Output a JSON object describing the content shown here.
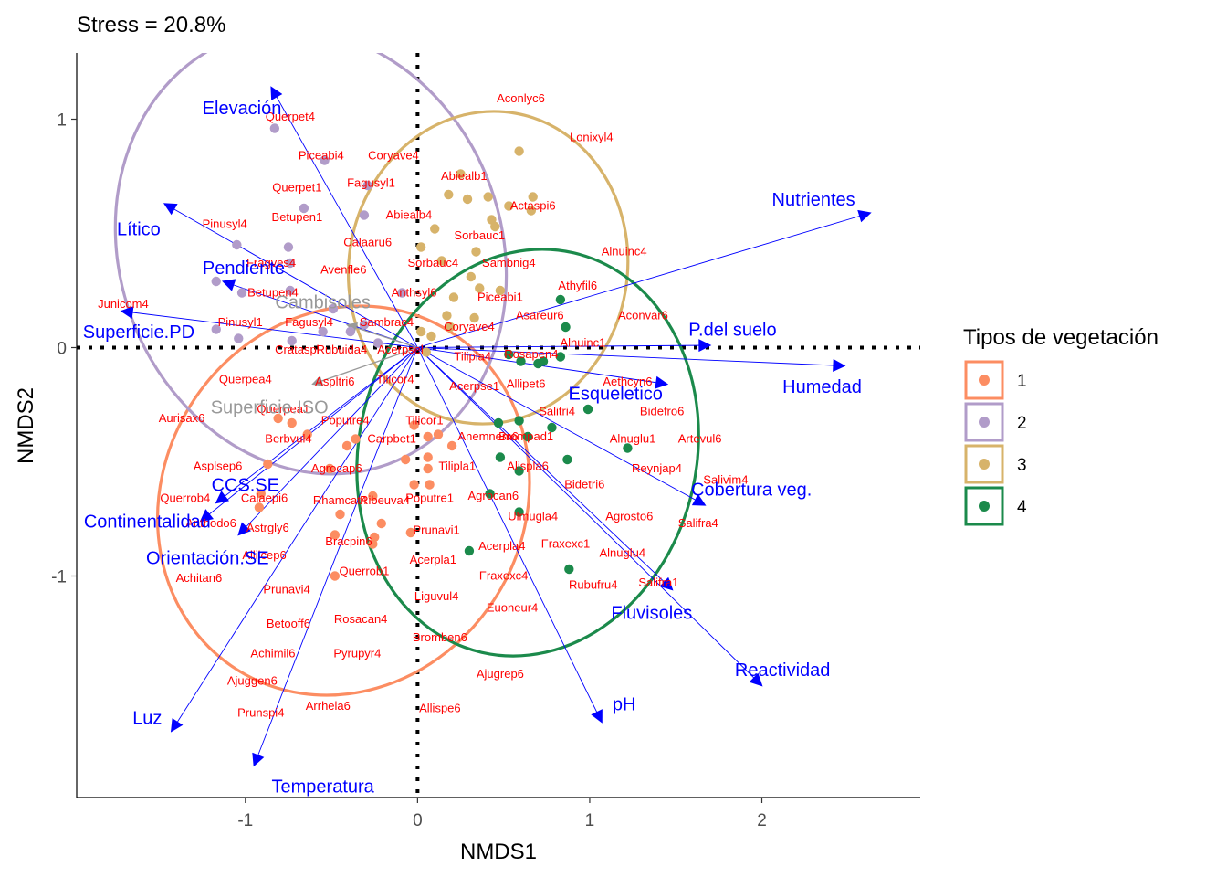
{
  "chart_data": {
    "type": "scatter",
    "title": "Stress = 20.8%",
    "xlabel": "NMDS1",
    "ylabel": "NMDS2",
    "xlim": [
      -1.98,
      2.92
    ],
    "ylim": [
      -1.97,
      1.29
    ],
    "xticks": [
      -1,
      0,
      1,
      2
    ],
    "yticks": [
      -1,
      0,
      1
    ],
    "xtick_labels": [
      "-1",
      "0",
      "1",
      "2"
    ],
    "ytick_labels": [
      "-1",
      "0",
      "1"
    ],
    "grid": false,
    "reference_lines": {
      "x": 0,
      "y": 0,
      "style": "dotted"
    },
    "legend": {
      "title": "Tipos de vegetación",
      "position": "right",
      "items": [
        {
          "label": "1",
          "color": "#fc8d62"
        },
        {
          "label": "2",
          "color": "#b19cc9"
        },
        {
          "label": "3",
          "color": "#d7b36a"
        },
        {
          "label": "4",
          "color": "#1b8a4b"
        }
      ]
    },
    "ellipses": [
      {
        "group": "1",
        "color": "#fc8d62",
        "cx": -0.43,
        "cy": -0.67,
        "rx": 1.16,
        "ry": 0.79,
        "angle": -58
      },
      {
        "group": "2",
        "color": "#b19cc9",
        "cx": -0.62,
        "cy": 0.42,
        "rx": 1.11,
        "ry": 0.99,
        "angle": -20
      },
      {
        "group": "3",
        "color": "#d7b36a",
        "cx": 0.41,
        "cy": 0.35,
        "rx": 0.91,
        "ry": 0.61,
        "angle": -80
      },
      {
        "group": "4",
        "color": "#1b8a4b",
        "cx": 0.64,
        "cy": -0.46,
        "rx": 1.19,
        "ry": 0.74,
        "angle": -77
      }
    ],
    "series": [
      {
        "name": "1",
        "color": "#fc8d62",
        "points": [
          [
            -0.81,
            -0.31
          ],
          [
            -0.73,
            -0.33
          ],
          [
            -0.87,
            -0.51
          ],
          [
            -0.91,
            -0.64
          ],
          [
            -0.92,
            -0.7
          ],
          [
            -0.64,
            -0.38
          ],
          [
            -0.41,
            -0.43
          ],
          [
            -0.45,
            -0.73
          ],
          [
            -0.26,
            -0.86
          ],
          [
            -0.25,
            -0.83
          ],
          [
            -0.48,
            -0.82
          ],
          [
            -0.48,
            -1.0
          ],
          [
            -0.21,
            -0.77
          ],
          [
            -0.26,
            -0.65
          ],
          [
            -0.07,
            -0.49
          ],
          [
            -0.02,
            -0.34
          ],
          [
            0.06,
            -0.39
          ],
          [
            0.12,
            -0.38
          ],
          [
            0.06,
            -0.48
          ],
          [
            0.2,
            -0.43
          ],
          [
            0.06,
            -0.53
          ],
          [
            -0.02,
            -0.6
          ],
          [
            0.07,
            -0.6
          ],
          [
            -0.04,
            -0.81
          ],
          [
            -0.36,
            -0.4
          ],
          [
            -0.51,
            -0.53
          ]
        ]
      },
      {
        "name": "2",
        "color": "#b19cc9",
        "points": [
          [
            -0.83,
            0.96
          ],
          [
            -0.66,
            0.61
          ],
          [
            -0.54,
            0.82
          ],
          [
            -0.29,
            0.71
          ],
          [
            -0.31,
            0.58
          ],
          [
            -0.75,
            0.44
          ],
          [
            -1.05,
            0.45
          ],
          [
            -0.74,
            0.37
          ],
          [
            -1.17,
            0.29
          ],
          [
            -1.02,
            0.24
          ],
          [
            -0.74,
            0.25
          ],
          [
            -1.17,
            0.08
          ],
          [
            -1.04,
            0.04
          ],
          [
            -0.73,
            0.03
          ],
          [
            -0.49,
            0.17
          ],
          [
            -0.39,
            0.07
          ],
          [
            -0.31,
            0.1
          ],
          [
            -0.23,
            0.02
          ],
          [
            -0.55,
            0.07
          ],
          [
            -0.09,
            0.24
          ]
        ]
      },
      {
        "name": "3",
        "color": "#d7b36a",
        "points": [
          [
            0.59,
            0.86
          ],
          [
            0.25,
            0.76
          ],
          [
            0.18,
            0.67
          ],
          [
            0.29,
            0.65
          ],
          [
            0.41,
            0.66
          ],
          [
            0.53,
            0.62
          ],
          [
            0.67,
            0.66
          ],
          [
            0.66,
            0.6
          ],
          [
            0.43,
            0.56
          ],
          [
            0.45,
            0.53
          ],
          [
            0.1,
            0.52
          ],
          [
            0.02,
            0.44
          ],
          [
            0.34,
            0.42
          ],
          [
            0.14,
            0.38
          ],
          [
            0.31,
            0.31
          ],
          [
            0.36,
            0.26
          ],
          [
            0.48,
            0.25
          ],
          [
            0.21,
            0.22
          ],
          [
            0.17,
            0.14
          ],
          [
            0.33,
            0.13
          ],
          [
            0.19,
            0.09
          ],
          [
            0.08,
            0.05
          ],
          [
            0.02,
            0.07
          ],
          [
            0.05,
            -0.02
          ]
        ]
      },
      {
        "name": "4",
        "color": "#1b8a4b",
        "points": [
          [
            0.83,
            0.21
          ],
          [
            0.86,
            0.09
          ],
          [
            0.6,
            -0.06
          ],
          [
            0.7,
            -0.07
          ],
          [
            0.83,
            -0.04
          ],
          [
            0.99,
            -0.27
          ],
          [
            0.78,
            -0.35
          ],
          [
            0.59,
            -0.32
          ],
          [
            0.47,
            -0.33
          ],
          [
            0.64,
            -0.39
          ],
          [
            1.22,
            -0.44
          ],
          [
            0.48,
            -0.48
          ],
          [
            0.59,
            -0.54
          ],
          [
            0.87,
            -0.49
          ],
          [
            0.42,
            -0.64
          ],
          [
            0.59,
            -0.72
          ],
          [
            0.3,
            -0.89
          ],
          [
            0.88,
            -0.97
          ],
          [
            0.73,
            -0.06
          ],
          [
            0.53,
            -0.03
          ]
        ]
      }
    ],
    "species_labels": [
      {
        "text": "Aconlyc6",
        "x": 0.6,
        "y": 1.09
      },
      {
        "text": "Querpet4",
        "x": -0.74,
        "y": 1.01
      },
      {
        "text": "Lonixyl4",
        "x": 1.01,
        "y": 0.92
      },
      {
        "text": "Piceabi4",
        "x": -0.56,
        "y": 0.84
      },
      {
        "text": "Coryave4",
        "x": -0.14,
        "y": 0.84
      },
      {
        "text": "Abiealb1",
        "x": 0.27,
        "y": 0.75
      },
      {
        "text": "Fagusyl1",
        "x": -0.27,
        "y": 0.72
      },
      {
        "text": "Querpet1",
        "x": -0.7,
        "y": 0.7
      },
      {
        "text": "Actaspi6",
        "x": 0.67,
        "y": 0.62
      },
      {
        "text": "Abiealb4",
        "x": -0.05,
        "y": 0.58
      },
      {
        "text": "Betupen1",
        "x": -0.7,
        "y": 0.57
      },
      {
        "text": "Pinusyl4",
        "x": -1.12,
        "y": 0.54
      },
      {
        "text": "Sorbauc1",
        "x": 0.36,
        "y": 0.49
      },
      {
        "text": "Calaaru6",
        "x": -0.29,
        "y": 0.46
      },
      {
        "text": "Alnuinc4",
        "x": 1.2,
        "y": 0.42
      },
      {
        "text": "Sorbauc4",
        "x": 0.09,
        "y": 0.37
      },
      {
        "text": "Sambnig4",
        "x": 0.53,
        "y": 0.37
      },
      {
        "text": "Avenfle6",
        "x": -0.43,
        "y": 0.34
      },
      {
        "text": "Fragves4",
        "x": -0.85,
        "y": 0.37
      },
      {
        "text": "Betupen4",
        "x": -0.84,
        "y": 0.24
      },
      {
        "text": "Athyfil6",
        "x": 0.93,
        "y": 0.27
      },
      {
        "text": "Anthsyl6",
        "x": -0.02,
        "y": 0.24
      },
      {
        "text": "Piceabi1",
        "x": 0.48,
        "y": 0.22
      },
      {
        "text": "Junicom4",
        "x": -1.71,
        "y": 0.19
      },
      {
        "text": "Asareur6",
        "x": 0.71,
        "y": 0.14
      },
      {
        "text": "Aconvar6",
        "x": 1.31,
        "y": 0.14
      },
      {
        "text": "Sambrac4",
        "x": -0.18,
        "y": 0.11
      },
      {
        "text": "Pinusyl1",
        "x": -1.03,
        "y": 0.11
      },
      {
        "text": "Fagusyl4",
        "x": -0.63,
        "y": 0.11
      },
      {
        "text": "Coryave4",
        "x": 0.3,
        "y": 0.09
      },
      {
        "text": "Alnuinc1",
        "x": 0.96,
        "y": 0.02
      },
      {
        "text": "Rubuida4",
        "x": -0.44,
        "y": -0.01
      },
      {
        "text": "Crataspl",
        "x": -0.7,
        "y": -0.01
      },
      {
        "text": "Acerpsel",
        "x": -0.1,
        "y": -0.01
      },
      {
        "text": "Tilipla4",
        "x": 0.32,
        "y": -0.04
      },
      {
        "text": "Rosapen4",
        "x": 0.66,
        "y": -0.03
      },
      {
        "text": "Querpea4",
        "x": -1.0,
        "y": -0.14
      },
      {
        "text": "Aspltri6",
        "x": -0.48,
        "y": -0.15
      },
      {
        "text": "Tilicor4",
        "x": -0.13,
        "y": -0.14
      },
      {
        "text": "Acerpse1",
        "x": 0.33,
        "y": -0.17
      },
      {
        "text": "Allipet6",
        "x": 0.63,
        "y": -0.16
      },
      {
        "text": "Aethcyn6",
        "x": 1.22,
        "y": -0.15
      },
      {
        "text": "Querpea1",
        "x": -0.78,
        "y": -0.27
      },
      {
        "text": "Aurisax6",
        "x": -1.37,
        "y": -0.31
      },
      {
        "text": "Poputre4",
        "x": -0.42,
        "y": -0.32
      },
      {
        "text": "Tilicor1",
        "x": 0.04,
        "y": -0.32
      },
      {
        "text": "Salitri4",
        "x": 0.81,
        "y": -0.28
      },
      {
        "text": "Bidefro6",
        "x": 1.42,
        "y": -0.28
      },
      {
        "text": "Berbvul4",
        "x": -0.75,
        "y": -0.4
      },
      {
        "text": "Carpbet1",
        "x": -0.15,
        "y": -0.4
      },
      {
        "text": "Anemnem6",
        "x": 0.41,
        "y": -0.39
      },
      {
        "text": "Brompad1",
        "x": 0.63,
        "y": -0.39
      },
      {
        "text": "Alnuglu1",
        "x": 1.25,
        "y": -0.4
      },
      {
        "text": "Artevul6",
        "x": 1.64,
        "y": -0.4
      },
      {
        "text": "Asplsep6",
        "x": -1.16,
        "y": -0.52
      },
      {
        "text": "Agrocap6",
        "x": -0.47,
        "y": -0.53
      },
      {
        "text": "Tilipla1",
        "x": 0.23,
        "y": -0.52
      },
      {
        "text": "Alispla6",
        "x": 0.64,
        "y": -0.52
      },
      {
        "text": "Reynjap4",
        "x": 1.39,
        "y": -0.53
      },
      {
        "text": "Salivim4",
        "x": 1.79,
        "y": -0.58
      },
      {
        "text": "Bidetri6",
        "x": 0.97,
        "y": -0.6
      },
      {
        "text": "Querrob4",
        "x": -1.35,
        "y": -0.66
      },
      {
        "text": "Calaepi6",
        "x": -0.89,
        "y": -0.66
      },
      {
        "text": "Rhamcat4",
        "x": -0.45,
        "y": -0.67
      },
      {
        "text": "Ribeuva4",
        "x": -0.19,
        "y": -0.67
      },
      {
        "text": "Poputre1",
        "x": 0.07,
        "y": -0.66
      },
      {
        "text": "Agrocan6",
        "x": 0.44,
        "y": -0.65
      },
      {
        "text": "Ulmugla4",
        "x": 0.67,
        "y": -0.74
      },
      {
        "text": "Agrosto6",
        "x": 1.23,
        "y": -0.74
      },
      {
        "text": "Salifra4",
        "x": 1.63,
        "y": -0.77
      },
      {
        "text": "Anthodo6",
        "x": -1.2,
        "y": -0.77
      },
      {
        "text": "Astrgly6",
        "x": -0.87,
        "y": -0.79
      },
      {
        "text": "Prunavi1",
        "x": 0.11,
        "y": -0.8
      },
      {
        "text": "Bracpin6",
        "x": -0.4,
        "y": -0.85
      },
      {
        "text": "Fraxexc1",
        "x": 0.86,
        "y": -0.86
      },
      {
        "text": "Acerpla4",
        "x": 0.49,
        "y": -0.87
      },
      {
        "text": "Alnuglu4",
        "x": 1.19,
        "y": -0.9
      },
      {
        "text": "Allilcep6",
        "x": -0.89,
        "y": -0.91
      },
      {
        "text": "Acerpla1",
        "x": 0.09,
        "y": -0.93
      },
      {
        "text": "Querrob1",
        "x": -0.31,
        "y": -0.98
      },
      {
        "text": "Fraxexc4",
        "x": 0.5,
        "y": -1.0
      },
      {
        "text": "Achitan6",
        "x": -1.27,
        "y": -1.01
      },
      {
        "text": "Rubufru4",
        "x": 1.02,
        "y": -1.04
      },
      {
        "text": "Salifra1",
        "x": 1.4,
        "y": -1.03
      },
      {
        "text": "Prunavi4",
        "x": -0.76,
        "y": -1.06
      },
      {
        "text": "Liguvul4",
        "x": 0.11,
        "y": -1.09
      },
      {
        "text": "Euoneur4",
        "x": 0.55,
        "y": -1.14
      },
      {
        "text": "Rosacan4",
        "x": -0.33,
        "y": -1.19
      },
      {
        "text": "Betooff6",
        "x": -0.75,
        "y": -1.21
      },
      {
        "text": "Bromben6",
        "x": 0.13,
        "y": -1.27
      },
      {
        "text": "Achimil6",
        "x": -0.84,
        "y": -1.34
      },
      {
        "text": "Pyrupyr4",
        "x": -0.35,
        "y": -1.34
      },
      {
        "text": "Ajugrep6",
        "x": 0.48,
        "y": -1.43
      },
      {
        "text": "Ajuggen6",
        "x": -0.96,
        "y": -1.46
      },
      {
        "text": "Arrhela6",
        "x": -0.52,
        "y": -1.57
      },
      {
        "text": "Allispe6",
        "x": 0.13,
        "y": -1.58
      },
      {
        "text": "Prunspi4",
        "x": -0.91,
        "y": -1.6
      }
    ],
    "vectors": [
      {
        "label": "Elevación",
        "x": -0.85,
        "y": 1.14,
        "lx": -1.02,
        "ly": 1.05
      },
      {
        "label": "Lítico",
        "x": -1.47,
        "y": 0.63,
        "lx": -1.62,
        "ly": 0.52
      },
      {
        "label": "Pendiente",
        "x": -1.13,
        "y": 0.29,
        "lx": -1.01,
        "ly": 0.35
      },
      {
        "label": "Superficie.PD",
        "x": -1.72,
        "y": 0.16,
        "lx": -1.62,
        "ly": 0.07
      },
      {
        "label": "Nutrientes",
        "x": 2.63,
        "y": 0.59,
        "lx": 2.3,
        "ly": 0.65
      },
      {
        "label": "P.del suelo",
        "x": 1.7,
        "y": 0.01,
        "lx": 1.83,
        "ly": 0.08
      },
      {
        "label": "Humedad",
        "x": 2.48,
        "y": -0.08,
        "lx": 2.35,
        "ly": -0.17
      },
      {
        "label": "Esqueletico",
        "x": 1.45,
        "y": -0.16,
        "lx": 1.15,
        "ly": -0.2
      },
      {
        "label": "Cobertura veg.",
        "x": 1.67,
        "y": -0.69,
        "lx": 1.94,
        "ly": -0.62
      },
      {
        "label": "Fluvisoles",
        "x": 1.48,
        "y": -1.06,
        "lx": 1.36,
        "ly": -1.16
      },
      {
        "label": "Reactividad",
        "x": 2.0,
        "y": -1.48,
        "lx": 2.12,
        "ly": -1.41
      },
      {
        "label": "pH",
        "x": 1.07,
        "y": -1.64,
        "lx": 1.2,
        "ly": -1.56
      },
      {
        "label": "CCS.SE",
        "x": -1.17,
        "y": -0.68,
        "lx": -1.0,
        "ly": -0.6
      },
      {
        "label": "Continentalidad",
        "x": -1.26,
        "y": -0.76,
        "lx": -1.57,
        "ly": -0.76
      },
      {
        "label": "Orientación.SE",
        "x": -1.04,
        "y": -0.82,
        "lx": -1.22,
        "ly": -0.92
      },
      {
        "label": "Luz",
        "x": -1.43,
        "y": -1.68,
        "lx": -1.57,
        "ly": -1.62
      },
      {
        "label": "Temperatura",
        "x": -0.95,
        "y": -1.83,
        "lx": -0.55,
        "ly": -1.92
      }
    ],
    "factor_labels": [
      {
        "label": "Cambisoles",
        "x": -0.41,
        "y": 0.1,
        "lx": -0.55,
        "ly": 0.2
      },
      {
        "label": "Superficie.ISO",
        "x": -0.61,
        "y": -0.16,
        "lx": -0.86,
        "ly": -0.26
      }
    ]
  }
}
